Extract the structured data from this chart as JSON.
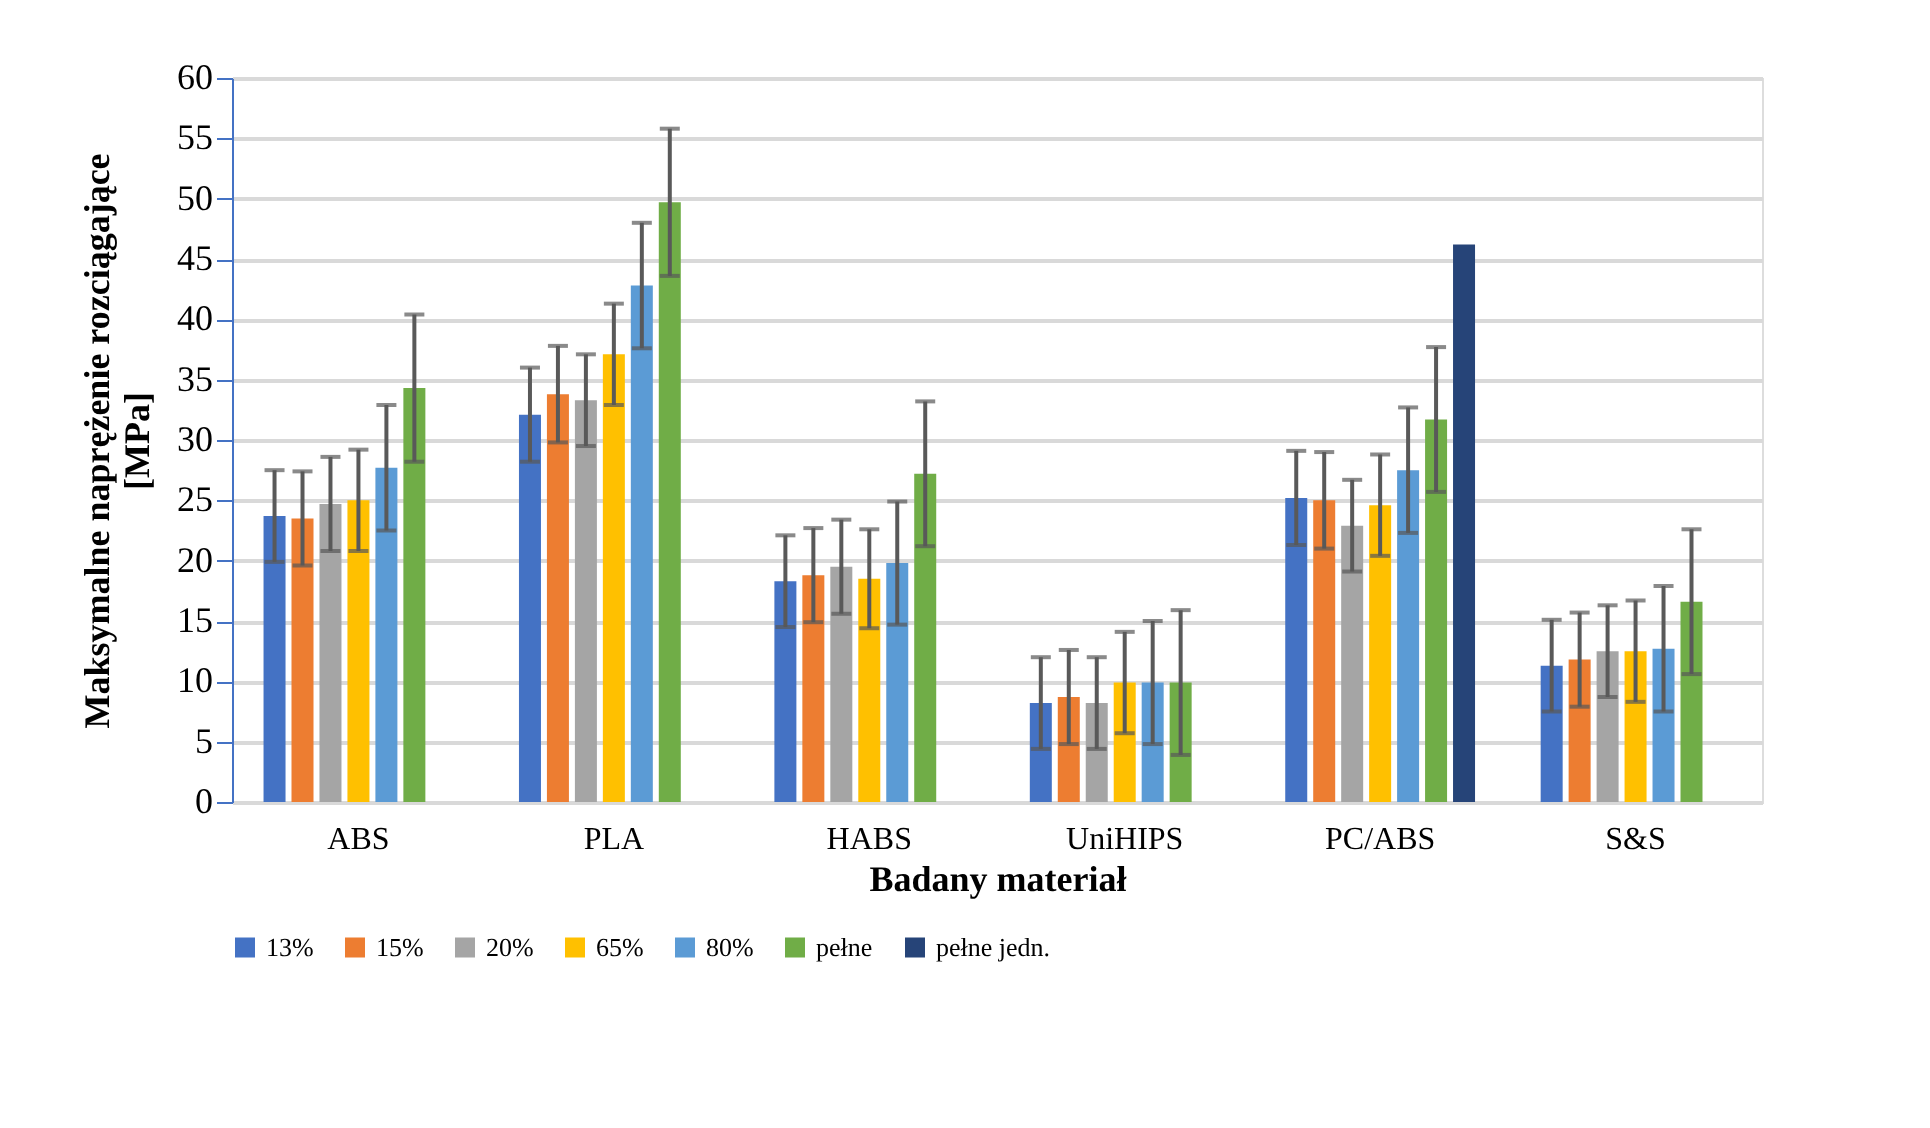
{
  "chart_data": {
    "type": "bar",
    "xlabel": "Badany materiał",
    "ylabel": "Maksymalne naprężenie rozciągające [MPa]",
    "categories": [
      "ABS",
      "PLA",
      "HABS",
      "UniHIPS",
      "PC/ABS",
      "S&S"
    ],
    "series": [
      {
        "name": "13%",
        "color": "#4472c4",
        "values": [
          23.7,
          32.1,
          18.3,
          8.2,
          25.2,
          11.3
        ],
        "errors": [
          3.8,
          3.9,
          3.8,
          3.8,
          3.9,
          3.8
        ]
      },
      {
        "name": "15%",
        "color": "#ed7d31",
        "values": [
          23.5,
          33.8,
          18.8,
          8.7,
          25.0,
          11.8
        ],
        "errors": [
          3.9,
          4.0,
          3.9,
          3.9,
          4.0,
          3.9
        ]
      },
      {
        "name": "20%",
        "color": "#a5a5a5",
        "values": [
          24.7,
          33.3,
          19.5,
          8.2,
          22.9,
          12.5
        ],
        "errors": [
          3.9,
          3.8,
          3.9,
          3.8,
          3.8,
          3.8
        ]
      },
      {
        "name": "65%",
        "color": "#ffc000",
        "values": [
          25.0,
          37.1,
          18.5,
          9.9,
          24.6,
          12.5
        ],
        "errors": [
          4.2,
          4.2,
          4.1,
          4.2,
          4.2,
          4.2
        ]
      },
      {
        "name": "80%",
        "color": "#5b9bd5",
        "values": [
          27.7,
          42.8,
          19.8,
          9.9,
          27.5,
          12.7
        ],
        "errors": [
          5.2,
          5.2,
          5.1,
          5.1,
          5.2,
          5.2
        ]
      },
      {
        "name": "pełne",
        "color": "#70ad47",
        "values": [
          34.3,
          49.7,
          27.2,
          9.9,
          31.7,
          16.6
        ],
        "errors": [
          6.1,
          6.1,
          6.0,
          6.0,
          6.0,
          6.0
        ]
      },
      {
        "name": "pełne jedn.",
        "color": "#264478",
        "values": [
          null,
          null,
          null,
          null,
          46.2,
          null
        ]
      }
    ],
    "ylim": [
      0,
      60
    ],
    "yticks": [
      0,
      5,
      10,
      15,
      20,
      25,
      30,
      35,
      40,
      45,
      50,
      55,
      60
    ],
    "grid": "y",
    "legend": "bottom"
  }
}
